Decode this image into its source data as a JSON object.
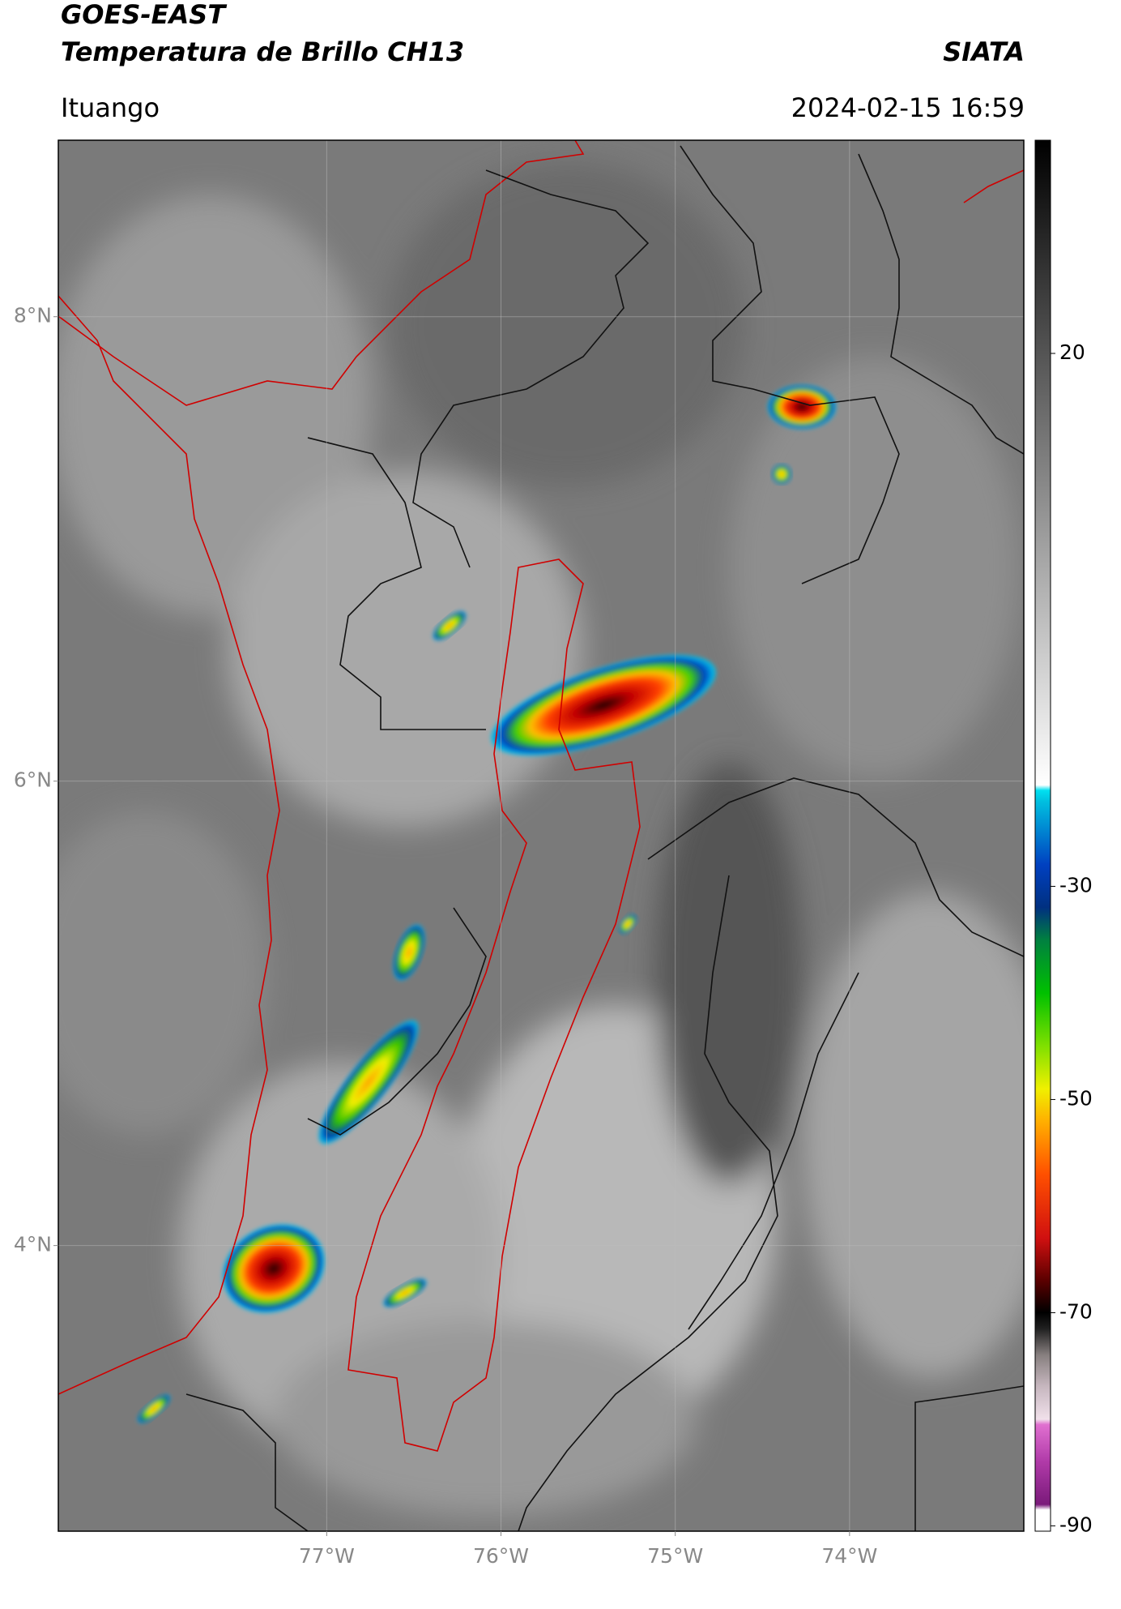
{
  "header": {
    "title": "GOES-EAST",
    "subtitle": "Temperatura de Brillo CH13",
    "agency": "SIATA",
    "location": "Ituango",
    "datetime": "2024-02-15 16:59"
  },
  "map": {
    "xlim": [
      -78.54,
      -73.0
    ],
    "ylim": [
      2.77,
      8.76
    ],
    "xticks": [
      {
        "value": -77,
        "label": "77°W"
      },
      {
        "value": -76,
        "label": "76°W"
      },
      {
        "value": -75,
        "label": "75°W"
      },
      {
        "value": -74,
        "label": "74°W"
      }
    ],
    "yticks": [
      {
        "value": 4,
        "label": "4°N"
      },
      {
        "value": 6,
        "label": "6°N"
      },
      {
        "value": 8,
        "label": "8°N"
      }
    ],
    "grid": true
  },
  "colorbar": {
    "lim": [
      -90.5,
      40
    ],
    "ticks": [
      20,
      -30,
      -50,
      -70,
      -90
    ],
    "stops": [
      {
        "value": -90.5,
        "color": "#ffffff"
      },
      {
        "value": -88.5,
        "color": "#ffffff"
      },
      {
        "value": -88,
        "color": "#7a1a7a"
      },
      {
        "value": -84,
        "color": "#b03aa8"
      },
      {
        "value": -80.5,
        "color": "#e070d0"
      },
      {
        "value": -80,
        "color": "#f0e0ea"
      },
      {
        "value": -77,
        "color": "#c8b8c0"
      },
      {
        "value": -74,
        "color": "#888080"
      },
      {
        "value": -71.5,
        "color": "#202020"
      },
      {
        "value": -70,
        "color": "#000000"
      },
      {
        "value": -67,
        "color": "#5a0000"
      },
      {
        "value": -63,
        "color": "#d01010"
      },
      {
        "value": -57,
        "color": "#ff5000"
      },
      {
        "value": -52,
        "color": "#ffb000"
      },
      {
        "value": -49,
        "color": "#f0f000"
      },
      {
        "value": -45,
        "color": "#80e000"
      },
      {
        "value": -40,
        "color": "#00c000"
      },
      {
        "value": -35,
        "color": "#008040"
      },
      {
        "value": -32,
        "color": "#003080"
      },
      {
        "value": -28,
        "color": "#0040c0"
      },
      {
        "value": -22,
        "color": "#00c0e0"
      },
      {
        "value": -21,
        "color": "#00e0f0"
      },
      {
        "value": -20.5,
        "color": "#ffffff"
      },
      {
        "value": 40,
        "color": "#000000"
      }
    ]
  }
}
